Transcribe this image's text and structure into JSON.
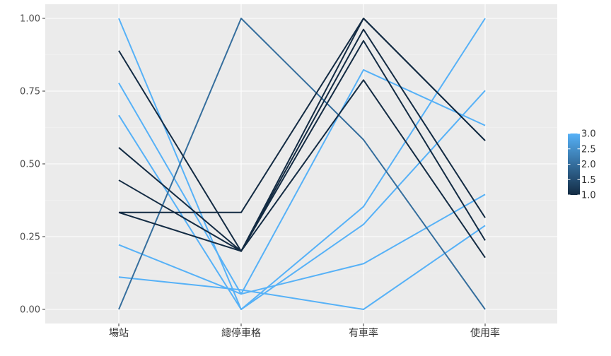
{
  "chart_data": {
    "type": "line",
    "title": "",
    "xlabel": "",
    "ylabel": "",
    "categories": [
      "場站",
      "總停車格",
      "有車率",
      "使用率"
    ],
    "ylim": [
      0,
      1
    ],
    "yticks": [
      "0.00",
      "0.25",
      "0.50",
      "0.75",
      "1.00"
    ],
    "grid": true,
    "legend_position": "right",
    "legend": {
      "title": "",
      "ticks": [
        "1.0",
        "1.5",
        "2.0",
        "2.5",
        "3.0"
      ],
      "range": [
        1,
        3
      ]
    },
    "color_low": "#132B43",
    "color_high": "#56B1F7",
    "series": [
      {
        "group": 1,
        "values": [
          0.889,
          0.2,
          1.0,
          0.58
        ]
      },
      {
        "group": 1,
        "values": [
          0.556,
          0.2,
          0.962,
          0.315
        ]
      },
      {
        "group": 1,
        "values": [
          0.444,
          0.2,
          0.923,
          0.237
        ]
      },
      {
        "group": 1,
        "values": [
          0.333,
          0.2,
          0.788,
          0.178
        ]
      },
      {
        "group": 1,
        "values": [
          0.333,
          0.333,
          1.0,
          0.58
        ]
      },
      {
        "group": 2,
        "values": [
          0.0,
          1.0,
          0.583,
          0.0
        ]
      },
      {
        "group": 3,
        "values": [
          1.0,
          0.0,
          0.353,
          1.0
        ]
      },
      {
        "group": 3,
        "values": [
          0.778,
          0.053,
          0.823,
          0.632
        ]
      },
      {
        "group": 3,
        "values": [
          0.667,
          0.0,
          0.292,
          0.752
        ]
      },
      {
        "group": 3,
        "values": [
          0.222,
          0.053,
          0.157,
          0.395
        ]
      },
      {
        "group": 3,
        "values": [
          0.111,
          0.067,
          0.0,
          0.288
        ]
      }
    ]
  }
}
